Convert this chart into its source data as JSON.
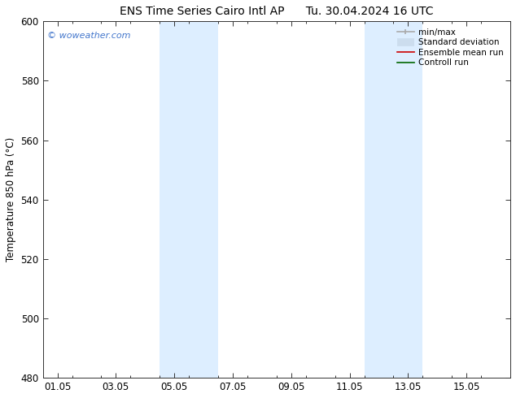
{
  "title_left": "ENS Time Series Cairo Intl AP",
  "title_right": "Tu. 30.04.2024 16 UTC",
  "ylabel": "Temperature 850 hPa (°C)",
  "ylim": [
    480,
    600
  ],
  "yticks": [
    480,
    500,
    520,
    540,
    560,
    580,
    600
  ],
  "xtick_labels": [
    "01.05",
    "03.05",
    "05.05",
    "07.05",
    "09.05",
    "11.05",
    "13.05",
    "15.05"
  ],
  "xtick_positions": [
    0,
    2,
    4,
    6,
    8,
    10,
    12,
    14
  ],
  "xlim": [
    -0.5,
    15.5
  ],
  "shaded_bands": [
    {
      "x_start": 3.5,
      "x_end": 5.5,
      "color": "#ddeeff"
    },
    {
      "x_start": 10.5,
      "x_end": 12.5,
      "color": "#ddeeff"
    }
  ],
  "background_color": "#ffffff",
  "plot_bg_color": "#ffffff",
  "watermark_text": "© woweather.com",
  "watermark_color": "#4477cc",
  "legend_entries": [
    {
      "label": "min/max",
      "color": "#aaaaaa",
      "lw": 1.2
    },
    {
      "label": "Standard deviation",
      "color": "#ccddee",
      "lw": 7
    },
    {
      "label": "Ensemble mean run",
      "color": "#cc0000",
      "lw": 1.2
    },
    {
      "label": "Controll run",
      "color": "#006600",
      "lw": 1.2
    }
  ],
  "title_fontsize": 10,
  "tick_fontsize": 8.5,
  "ylabel_fontsize": 8.5,
  "legend_fontsize": 7.5
}
